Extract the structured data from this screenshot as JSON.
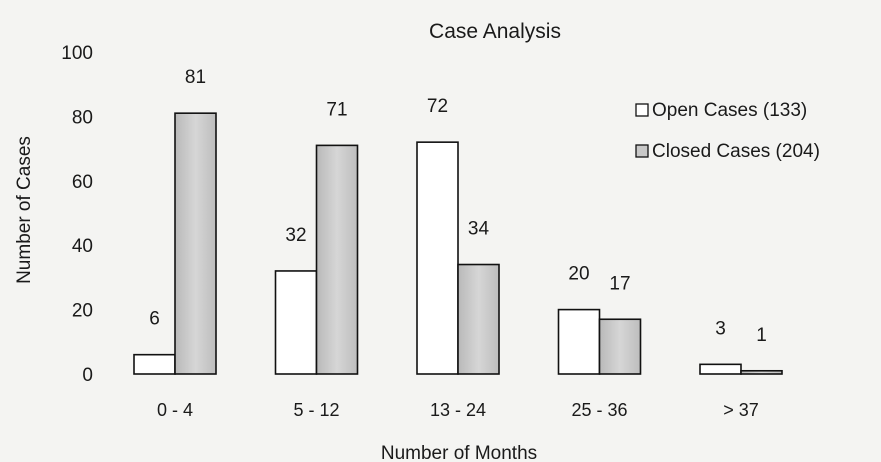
{
  "chart_data": {
    "type": "bar",
    "title": "Case Analysis",
    "xlabel": "Number of Months",
    "ylabel": "Number of Cases",
    "categories": [
      "0 - 4",
      "5 - 12",
      "13 - 24",
      "25 - 36",
      "> 37"
    ],
    "series": [
      {
        "name": "Open Cases (133)",
        "values": [
          6,
          32,
          72,
          20,
          3
        ],
        "color": "#ffffff"
      },
      {
        "name": "Closed Cases (204)",
        "values": [
          81,
          71,
          34,
          17,
          1
        ],
        "color": "#c8c8c8"
      }
    ],
    "yticks": [
      "0",
      "20",
      "40",
      "60",
      "80",
      "100"
    ],
    "ylim": [
      0,
      100
    ],
    "grid": false,
    "legend_position": "right"
  }
}
